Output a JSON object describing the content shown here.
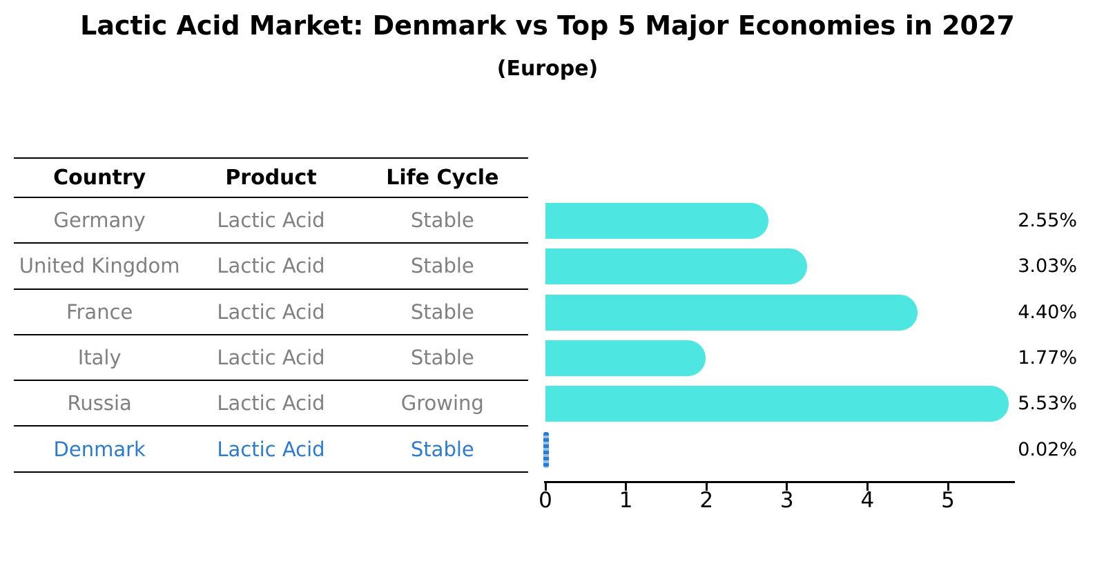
{
  "title": "Lactic Acid Market: Denmark vs Top 5 Major Economies in 2027",
  "subtitle": "(Europe)",
  "colors": {
    "bar_turquoise": "#4ee6e1",
    "highlight_blue": "#2b7bd4",
    "highlight_blue_light": "#90c2ee",
    "table_text_gray": "#808080",
    "text_black": "#000000"
  },
  "table": {
    "headers": [
      "Country",
      "Product",
      "Life Cycle"
    ],
    "rows": [
      {
        "country": "Germany",
        "product": "Lactic Acid",
        "life_cycle": "Stable",
        "highlight": false
      },
      {
        "country": "United Kingdom",
        "product": "Lactic Acid",
        "life_cycle": "Stable",
        "highlight": false
      },
      {
        "country": "France",
        "product": "Lactic Acid",
        "life_cycle": "Stable",
        "highlight": false
      },
      {
        "country": "Italy",
        "product": "Lactic Acid",
        "life_cycle": "Stable",
        "highlight": false
      },
      {
        "country": "Russia",
        "product": "Lactic Acid",
        "life_cycle": "Growing",
        "highlight": false
      },
      {
        "country": "Denmark",
        "product": "Lactic Acid",
        "life_cycle": "Stable",
        "highlight": true
      }
    ]
  },
  "chart_data": {
    "type": "bar",
    "orientation": "horizontal",
    "title": "Lactic Acid Market: Denmark vs Top 5 Major Economies in 2027 (Europe)",
    "categories": [
      "Germany",
      "United Kingdom",
      "France",
      "Italy",
      "Russia",
      "Denmark"
    ],
    "values": [
      2.55,
      3.03,
      4.4,
      1.77,
      5.53,
      0.02
    ],
    "value_labels": [
      "2.55%",
      "3.03%",
      "4.40%",
      "1.77%",
      "5.53%",
      "0.02%"
    ],
    "highlight_category": "Denmark",
    "xlabel": "",
    "ylabel": "",
    "x_ticks": [
      0,
      1,
      2,
      3,
      4,
      5
    ],
    "xlim": [
      0,
      5.85
    ],
    "grid": false,
    "legend": false
  }
}
